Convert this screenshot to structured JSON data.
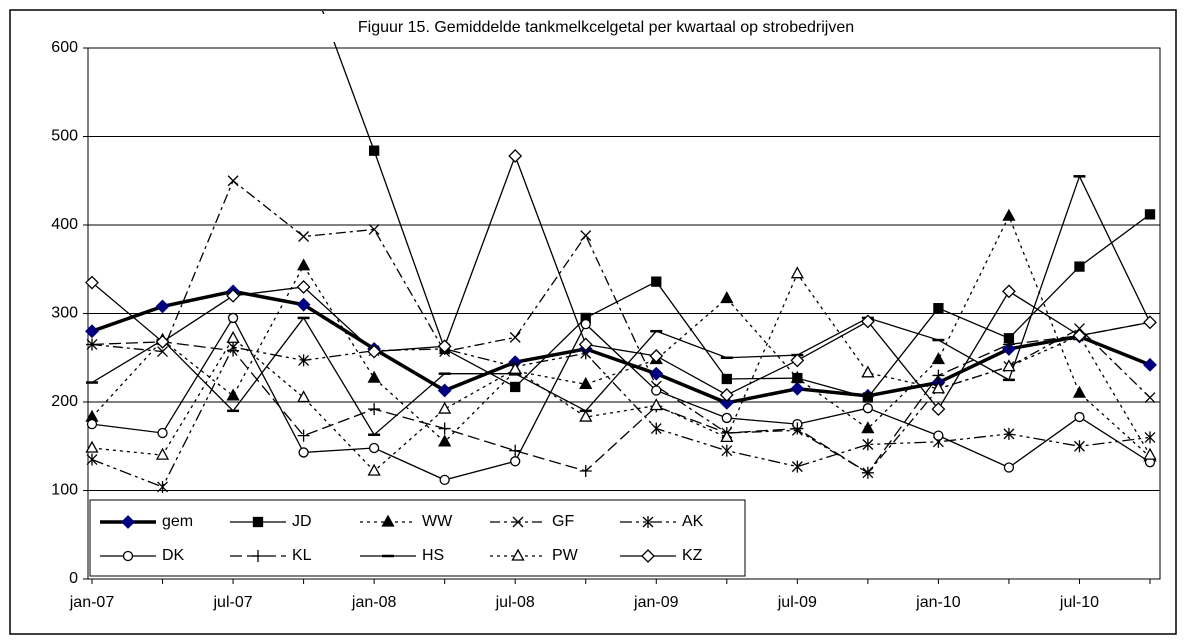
{
  "chart_data": {
    "type": "line",
    "title": "Figuur 15. Gemiddelde tankmelkcelgetal per kwartaal op strobedrijven",
    "categories": [
      "jan-07",
      null,
      "jul-07",
      null,
      "jan-08",
      null,
      "jul-08",
      null,
      "jan-09",
      null,
      "jul-09",
      null,
      "jan-10",
      null,
      "jul-10",
      null
    ],
    "ylim": [
      0,
      600
    ],
    "yticks": [
      0,
      100,
      200,
      300,
      400,
      500,
      600
    ],
    "grid": true,
    "series": [
      {
        "name": "gem",
        "color": "#000080",
        "values": [
          280,
          308,
          325,
          310,
          260,
          213,
          245,
          260,
          232,
          199,
          215,
          207,
          222,
          260,
          274,
          242
        ]
      },
      {
        "name": "JD",
        "color": "#000000",
        "values": [
          null,
          null,
          null,
          700,
          484,
          260,
          217,
          295,
          336,
          226,
          227,
          205,
          306,
          272,
          353,
          412
        ]
      },
      {
        "name": "WW",
        "color": "#000000",
        "values": [
          183,
          270,
          207,
          354,
          227,
          155,
          235,
          220,
          248,
          317,
          227,
          170,
          248,
          410,
          210,
          138
        ]
      },
      {
        "name": "GF",
        "color": "#000000",
        "values": [
          265,
          257,
          450,
          387,
          395,
          257,
          273,
          388,
          218,
          165,
          168,
          120,
          215,
          240,
          283,
          205
        ]
      },
      {
        "name": "AK",
        "color": "#000000",
        "values": [
          135,
          104,
          262,
          247,
          258,
          260,
          240,
          255,
          170,
          145,
          127,
          152,
          155,
          164,
          150,
          160
        ]
      },
      {
        "name": "DK",
        "color": "#000000",
        "values": [
          175,
          165,
          295,
          143,
          148,
          112,
          133,
          288,
          213,
          182,
          175,
          193,
          162,
          126,
          183,
          132
        ]
      },
      {
        "name": "KL",
        "color": "#000000",
        "values": [
          265,
          268,
          258,
          162,
          192,
          170,
          145,
          122,
          195,
          165,
          170,
          120,
          230,
          265,
          275,
          290
        ]
      },
      {
        "name": "HS",
        "color": "#000000",
        "values": [
          222,
          270,
          190,
          295,
          163,
          232,
          232,
          190,
          280,
          250,
          253,
          295,
          270,
          225,
          455,
          290
        ]
      },
      {
        "name": "PW",
        "color": "#000000",
        "values": [
          148,
          140,
          272,
          205,
          122,
          192,
          237,
          183,
          196,
          160,
          345,
          233,
          215,
          240,
          275,
          140
        ]
      },
      {
        "name": "KZ",
        "color": "#000000",
        "values": [
          335,
          268,
          320,
          330,
          257,
          263,
          478,
          265,
          252,
          208,
          247,
          291,
          192,
          325,
          275,
          290
        ]
      }
    ]
  }
}
